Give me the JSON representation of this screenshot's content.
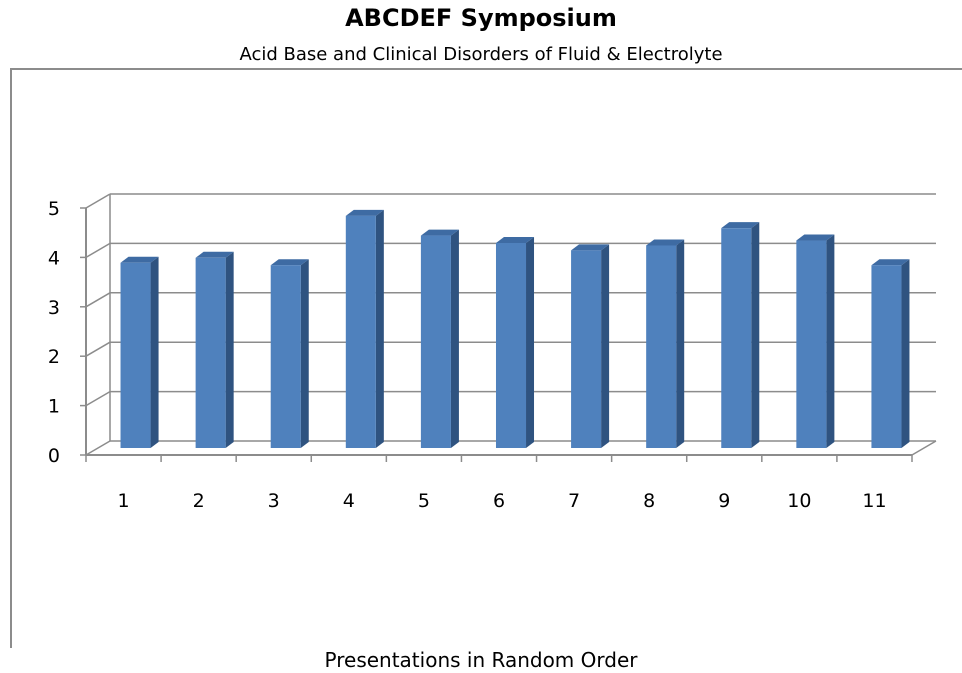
{
  "chart_data": {
    "type": "bar",
    "title": "ABCDEF Symposium",
    "subtitle": "Acid Base and Clinical Disorders of Fluid & Electrolyte",
    "xlabel": "Presentations in Random Order",
    "ylabel": "",
    "categories": [
      "1",
      "2",
      "3",
      "4",
      "5",
      "6",
      "7",
      "8",
      "9",
      "10",
      "11"
    ],
    "values": [
      3.75,
      3.85,
      3.7,
      4.7,
      4.3,
      4.15,
      4.0,
      4.1,
      4.45,
      4.2,
      3.7
    ],
    "ylim": [
      0,
      5
    ],
    "yticks": [
      "0",
      "1",
      "2",
      "3",
      "4",
      "5"
    ],
    "grid": true,
    "three_d": true,
    "bar_color": "#4f81bd"
  }
}
